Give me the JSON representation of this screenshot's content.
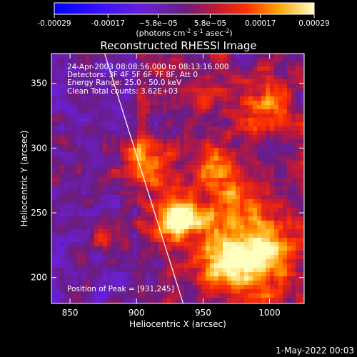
{
  "chart_data": {
    "type": "heatmap",
    "title": "Reconstructed RHESSI Image",
    "xlabel": "Heliocentric X (arcsec)",
    "ylabel": "Heliocentric Y (arcsec)",
    "xlim": [
      836,
      1026
    ],
    "ylim": [
      180,
      373
    ],
    "x_ticks": [
      "850",
      "900",
      "950",
      "1000"
    ],
    "x_tick_values": [
      850,
      900,
      950,
      1000
    ],
    "y_ticks": [
      "200",
      "250",
      "300",
      "350"
    ],
    "y_tick_values": [
      200,
      250,
      300,
      350
    ],
    "colorbar": {
      "tick_labels": [
        "-0.00029",
        "-0.00017",
        "−5.8e−05",
        "5.8e−05",
        "0.00017",
        "0.00029"
      ],
      "tick_values": [
        -0.00029,
        -0.00017,
        -5.8e-05,
        5.8e-05,
        0.00017,
        0.00029
      ],
      "range": [
        -0.00029,
        0.00029
      ],
      "units_prefix": "(photons cm",
      "units_exp1": "-2",
      "units_mid": " s",
      "units_exp2": "-1",
      "units_mid2": " asec",
      "units_exp3": "-2",
      "units_suffix": ")"
    },
    "annotations": [
      "24-Apr-2003 08:08:56.000 to 08:13:16.000",
      "Detectors: 3F 4F 5F 6F 7F 8F, Att 0",
      "Energy Range: 25.0 - 50.0 keV",
      "Clean     Total counts: 3.62E+03"
    ],
    "peak_label": "Position of Peak = [931,245]",
    "peak": [
      931,
      245
    ],
    "limb_line": [
      [
        876,
        373
      ],
      [
        935,
        180
      ]
    ],
    "grid": false
  },
  "footer": {
    "date": "1-May-2022 00:03"
  }
}
